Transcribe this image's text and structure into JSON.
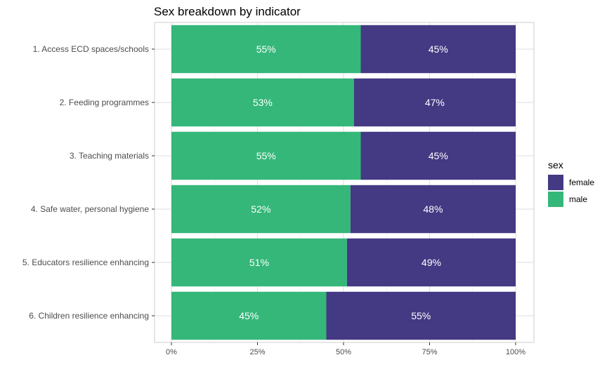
{
  "chart_data": {
    "type": "bar",
    "orientation": "horizontal",
    "stacked": true,
    "title": "Sex breakdown by indicator",
    "xlabel": "",
    "ylabel": "",
    "xlim": [
      0,
      100
    ],
    "x_ticks": [
      "0%",
      "25%",
      "50%",
      "75%",
      "100%"
    ],
    "grid": true,
    "legend_position": "right",
    "legend_title": "sex",
    "categories": [
      "1. Access ECD spaces/schools",
      "2. Feeding programmes",
      "3. Teaching materials",
      "4. Safe water, personal hygiene",
      "5. Educators resilience enhancing",
      "6. Children resilience enhancing"
    ],
    "series": [
      {
        "name": "male",
        "color": "#35b779",
        "values": [
          55,
          53,
          55,
          52,
          51,
          45
        ],
        "labels": [
          "55%",
          "53%",
          "55%",
          "52%",
          "51%",
          "45%"
        ]
      },
      {
        "name": "female",
        "color": "#443983",
        "values": [
          45,
          47,
          45,
          48,
          49,
          55
        ],
        "labels": [
          "45%",
          "47%",
          "45%",
          "48%",
          "49%",
          "55%"
        ]
      }
    ],
    "legend_order": [
      "female",
      "male"
    ]
  }
}
